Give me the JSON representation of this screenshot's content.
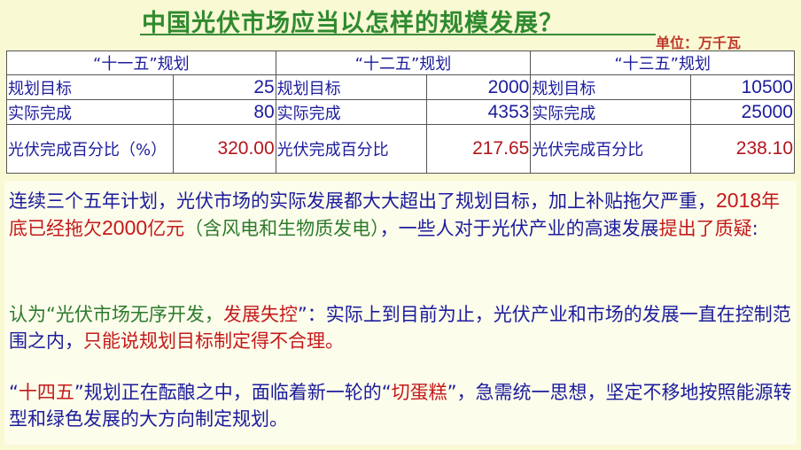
{
  "title": "中国光伏市场应当以怎样的规模发展？",
  "unit": "单位：万千瓦",
  "colors": {
    "title": "#2f8a2f",
    "text": "#1c1c9c",
    "highlight_red": "#c31a1a",
    "highlight_green": "#2c7a2c",
    "background": "#f9f9d4"
  },
  "table": {
    "plans": [
      {
        "header": "“十一五”规划",
        "rows": [
          {
            "label": "规划目标",
            "value": "25"
          },
          {
            "label": "实际完成",
            "value": "80"
          },
          {
            "label": "光伏完成百分比（%）",
            "value": "320.00"
          }
        ]
      },
      {
        "header": "“十二五”规划",
        "rows": [
          {
            "label": "规划目标",
            "value": "2000"
          },
          {
            "label": "实际完成",
            "value": "4353"
          },
          {
            "label": "光伏完成百分比",
            "value": "217.65"
          }
        ]
      },
      {
        "header": "“十三五”规划",
        "rows": [
          {
            "label": "规划目标",
            "value": "10500"
          },
          {
            "label": "实际完成",
            "value": "25000"
          },
          {
            "label": "光伏完成百分比",
            "value": "238.10"
          }
        ]
      }
    ]
  },
  "paragraphs": [
    [
      {
        "t": "连续三个五年计划，光伏市场的实际发展都大大超出了规划目标，加上补贴拖欠严重，",
        "c": "blue"
      },
      {
        "t": "2018",
        "c": "red",
        "n": true
      },
      {
        "t": "年底已经拖欠",
        "c": "red"
      },
      {
        "t": "2000",
        "c": "red",
        "n": true
      },
      {
        "t": "亿元",
        "c": "red"
      },
      {
        "t": "（含风电和生物质发电）",
        "c": "green"
      },
      {
        "t": "，一些人对于光伏产业的高速发展",
        "c": "blue"
      },
      {
        "t": "提出了质疑",
        "c": "red"
      },
      {
        "t": ":",
        "c": "blue"
      }
    ],
    [
      {
        "t": "认为“光伏市场无序开发，",
        "c": "green"
      },
      {
        "t": "发展失控",
        "c": "red"
      },
      {
        "t": "”：实际上到目前为止，光伏产业和市场的发展一直在控制范围之内，",
        "c": "blue"
      },
      {
        "t": "只能说规划目标制定得不合理。",
        "c": "red"
      }
    ],
    [
      {
        "t": "“",
        "c": "blue"
      },
      {
        "t": "十四五",
        "c": "red"
      },
      {
        "t": "”规划正在酝酿之中，面临着新一轮的“",
        "c": "blue"
      },
      {
        "t": "切蛋糕",
        "c": "red"
      },
      {
        "t": "”，急需统一思想，坚定不移地按照能源转型和绿色发展的大方向制定规划。",
        "c": "blue"
      }
    ]
  ]
}
